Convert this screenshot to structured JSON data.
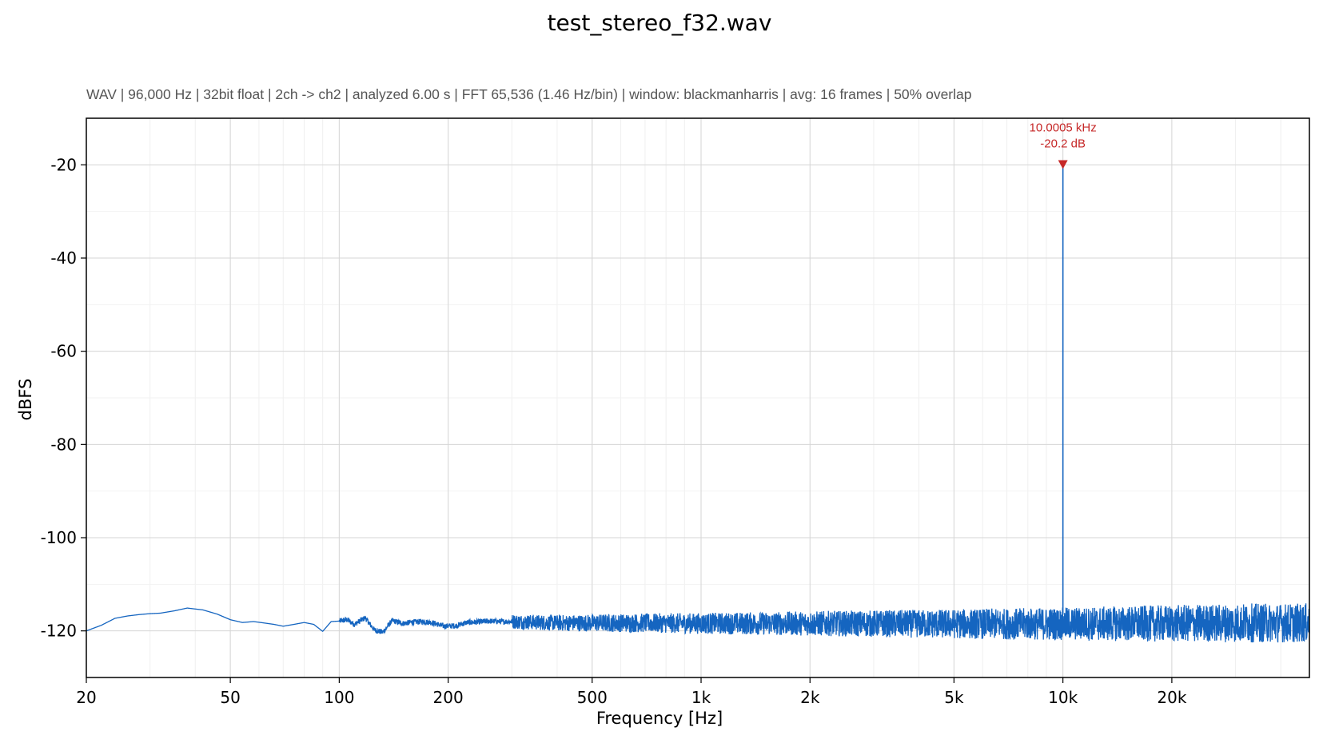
{
  "chart_data": {
    "type": "line",
    "title": "test_stereo_f32.wav",
    "subtitle": "WAV | 96,000 Hz | 32bit float | 2ch -> ch2 | analyzed 6.00 s | FFT 65,536 (1.46 Hz/bin) | window: blackmanharris | avg: 16 frames | 50% overlap",
    "xlabel": "Frequency [Hz]",
    "ylabel": "dBFS",
    "x_scale": "log",
    "xlim": [
      20,
      48000
    ],
    "ylim": [
      -130,
      -10
    ],
    "x_ticks": [
      {
        "value": 20,
        "label": "20"
      },
      {
        "value": 50,
        "label": "50"
      },
      {
        "value": 100,
        "label": "100"
      },
      {
        "value": 200,
        "label": "200"
      },
      {
        "value": 500,
        "label": "500"
      },
      {
        "value": 1000,
        "label": "1k"
      },
      {
        "value": 2000,
        "label": "2k"
      },
      {
        "value": 5000,
        "label": "5k"
      },
      {
        "value": 10000,
        "label": "10k"
      },
      {
        "value": 20000,
        "label": "20k"
      }
    ],
    "y_ticks": [
      -20,
      -40,
      -60,
      -80,
      -100,
      -120
    ],
    "grid": true,
    "series": [
      {
        "color": "#1565c0",
        "noise_floor_points": [
          [
            20,
            -120.0
          ],
          [
            22,
            -118.8
          ],
          [
            24,
            -117.3
          ],
          [
            26,
            -116.8
          ],
          [
            28,
            -116.5
          ],
          [
            30,
            -116.3
          ],
          [
            32,
            -116.2
          ],
          [
            35,
            -115.7
          ],
          [
            38,
            -115.1
          ],
          [
            42,
            -115.5
          ],
          [
            46,
            -116.4
          ],
          [
            50,
            -117.6
          ],
          [
            54,
            -118.2
          ],
          [
            58,
            -118.0
          ],
          [
            62,
            -118.3
          ],
          [
            66,
            -118.6
          ],
          [
            70,
            -119.0
          ],
          [
            75,
            -118.6
          ],
          [
            80,
            -118.2
          ],
          [
            85,
            -118.6
          ],
          [
            90,
            -120.1
          ],
          [
            95,
            -118.0
          ],
          [
            100,
            -117.9
          ],
          [
            105,
            -117.6
          ],
          [
            110,
            -118.6
          ],
          [
            118,
            -117.2
          ],
          [
            125,
            -119.8
          ],
          [
            132,
            -120.3
          ],
          [
            140,
            -117.8
          ],
          [
            150,
            -118.4
          ],
          [
            160,
            -118.1
          ],
          [
            170,
            -118.0
          ],
          [
            180,
            -118.2
          ],
          [
            195,
            -119.0
          ],
          [
            210,
            -118.9
          ],
          [
            225,
            -118.2
          ],
          [
            240,
            -118.1
          ],
          [
            260,
            -117.9
          ],
          [
            280,
            -118.0
          ],
          [
            300,
            -118.0
          ],
          [
            400,
            -118.3
          ],
          [
            500,
            -118.3
          ],
          [
            700,
            -118.3
          ],
          [
            1000,
            -118.4
          ],
          [
            2000,
            -118.4
          ],
          [
            5000,
            -118.5
          ],
          [
            10000,
            -118.5
          ],
          [
            20000,
            -118.4
          ],
          [
            30000,
            -118.3
          ],
          [
            48000,
            -118.3
          ]
        ]
      }
    ],
    "peak": {
      "freq": 10000.5,
      "db": -20.2,
      "label_freq": "10.0005 kHz",
      "label_db": "-20.2 dB",
      "color": "#c62828"
    }
  }
}
